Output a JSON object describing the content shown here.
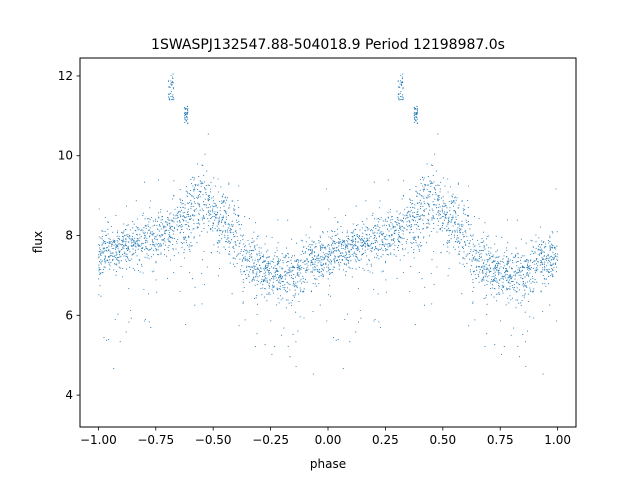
{
  "chart_data": {
    "type": "scatter",
    "title": "1SWASPJ132547.88-504018.9 Period 12198987.0s",
    "xlabel": "phase",
    "ylabel": "flux",
    "xlim": [
      -1.08,
      1.08
    ],
    "ylim": [
      3.2,
      12.45
    ],
    "xticks": [
      -1.0,
      -0.75,
      -0.5,
      -0.25,
      0.0,
      0.25,
      0.5,
      0.75,
      1.0
    ],
    "xtick_labels": [
      "−1.00",
      "−0.75",
      "−0.50",
      "−0.25",
      "0.00",
      "0.25",
      "0.50",
      "0.75",
      "1.00"
    ],
    "yticks": [
      4,
      6,
      8,
      10,
      12
    ],
    "ytick_labels": [
      "4",
      "6",
      "8",
      "10",
      "12"
    ],
    "grid": false,
    "marker_color": "#1f77b4",
    "description_of_series": "folded light curve shown twice over phase -1 to 1",
    "series": [
      {
        "values_profile": {
          "phase": [
            0.0,
            0.05,
            0.1,
            0.15,
            0.2,
            0.25,
            0.3,
            0.35,
            0.4,
            0.45,
            0.5,
            0.55,
            0.6,
            0.65,
            0.7,
            0.75,
            0.8,
            0.85,
            0.9,
            0.95,
            1.0
          ],
          "median_flux": [
            7.5,
            7.6,
            7.7,
            7.8,
            7.9,
            7.9,
            8.0,
            8.3,
            8.5,
            9.0,
            8.6,
            8.3,
            7.9,
            7.4,
            7.2,
            7.1,
            7.0,
            7.0,
            7.3,
            7.4,
            7.5
          ],
          "spread": [
            0.5,
            0.5,
            0.5,
            0.5,
            0.5,
            0.5,
            0.55,
            0.6,
            0.7,
            0.8,
            0.7,
            0.7,
            0.7,
            0.65,
            0.6,
            0.55,
            0.55,
            0.5,
            0.5,
            0.5,
            0.5
          ]
        },
        "high_clusters": [
          {
            "phase_range": [
              0.305,
              0.33
            ],
            "flux_range": [
              11.4,
              12.05
            ]
          },
          {
            "phase_range": [
              0.375,
              0.39
            ],
            "flux_range": [
              10.8,
              11.25
            ]
          }
        ]
      }
    ]
  }
}
